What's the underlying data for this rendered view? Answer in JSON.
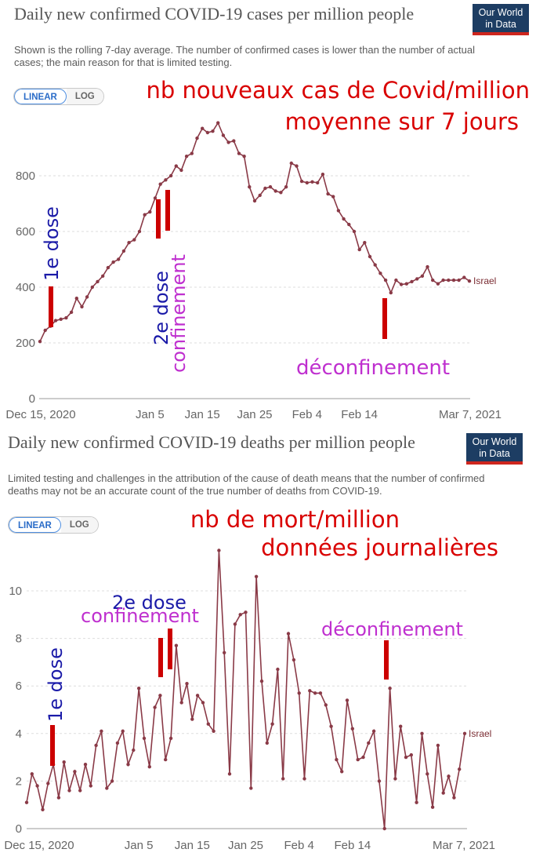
{
  "cases": {
    "title": "Daily new confirmed COVID-19 cases per million people",
    "subtitle": "Shown is the rolling 7-day average. The number of confirmed cases is lower than the number of actual cases; the main reason for that is limited testing.",
    "logo": [
      "Our World",
      "in Data"
    ],
    "scale_options": [
      "LINEAR",
      "LOG"
    ],
    "active_scale": "LINEAR",
    "annotations": {
      "headline": [
        "nb nouveaux cas de Covid/million",
        "moyenne sur 7 jours"
      ],
      "dose1": "1e dose",
      "dose2": "2e dose",
      "confinement": "confinement",
      "deconfinement": "déconfinement"
    },
    "colors": {
      "line": "#8a3a47",
      "annot_red": "#d90000",
      "annot_blue": "#1a1aa8",
      "annot_purple": "#bf2fcf",
      "bar_red": "#cc0000"
    }
  },
  "deaths": {
    "title": "Daily new confirmed COVID-19 deaths per million people",
    "subtitle": "Limited testing and challenges in the attribution of the cause of death means that the number of confirmed deaths may not be an accurate count of the true number of deaths from COVID-19.",
    "logo": [
      "Our World",
      "in Data"
    ],
    "scale_options": [
      "LINEAR",
      "LOG"
    ],
    "active_scale": "LINEAR",
    "annotations": {
      "headline": [
        "nb de mort/million",
        "données journalières"
      ],
      "dose1": "1e dose",
      "dose2": "2e dose",
      "confinement": "confinement",
      "deconfinement": "déconfinement"
    }
  },
  "chart_data": [
    {
      "type": "line",
      "title": "Daily new confirmed COVID-19 cases per million people",
      "x_tick_labels": [
        "Dec 15, 2020",
        "Jan 5",
        "Jan 15",
        "Jan 25",
        "Feb 4",
        "Feb 14",
        "Mar 7, 2021"
      ],
      "x_tick_days": [
        0,
        21,
        31,
        41,
        51,
        61,
        82
      ],
      "y_ticks": [
        0,
        200,
        400,
        600,
        800
      ],
      "ylim": [
        0,
        1000
      ],
      "grid": true,
      "series": [
        {
          "name": "Israel",
          "x_days": [
            0,
            1,
            2,
            3,
            4,
            5,
            6,
            7,
            8,
            9,
            10,
            11,
            12,
            13,
            14,
            15,
            16,
            17,
            18,
            19,
            20,
            21,
            22,
            23,
            24,
            25,
            26,
            27,
            28,
            29,
            30,
            31,
            32,
            33,
            34,
            35,
            36,
            37,
            38,
            39,
            40,
            41,
            42,
            43,
            44,
            45,
            46,
            47,
            48,
            49,
            50,
            51,
            52,
            53,
            54,
            55,
            56,
            57,
            58,
            59,
            60,
            61,
            62,
            63,
            64,
            65,
            66,
            67,
            68,
            69,
            70,
            71,
            72,
            73,
            74,
            75,
            76,
            77,
            78,
            79,
            80,
            81,
            82
          ],
          "values": [
            205,
            245,
            260,
            280,
            285,
            290,
            310,
            360,
            330,
            365,
            400,
            420,
            440,
            470,
            490,
            500,
            530,
            560,
            570,
            600,
            660,
            670,
            720,
            770,
            785,
            800,
            835,
            820,
            870,
            880,
            935,
            970,
            955,
            960,
            990,
            945,
            920,
            925,
            880,
            870,
            760,
            710,
            730,
            755,
            760,
            745,
            740,
            760,
            845,
            835,
            780,
            775,
            778,
            775,
            805,
            735,
            725,
            675,
            645,
            625,
            600,
            535,
            560,
            510,
            480,
            450,
            425,
            380,
            425,
            410,
            412,
            420,
            430,
            440,
            473,
            425,
            412,
            425,
            425,
            425,
            425,
            435,
            422
          ]
        }
      ]
    },
    {
      "type": "line",
      "title": "Daily new confirmed COVID-19 deaths per million people",
      "x_tick_labels": [
        "Dec 15, 2020",
        "Jan 5",
        "Jan 15",
        "Jan 25",
        "Feb 4",
        "Feb 14",
        "Mar 7, 2021"
      ],
      "x_tick_days": [
        0,
        21,
        31,
        41,
        51,
        61,
        82
      ],
      "y_ticks": [
        0,
        2,
        4,
        6,
        8,
        10
      ],
      "ylim": [
        0,
        12
      ],
      "grid": true,
      "series": [
        {
          "name": "Israel",
          "x_days": [
            0,
            1,
            2,
            3,
            4,
            5,
            6,
            7,
            8,
            9,
            10,
            11,
            12,
            13,
            14,
            15,
            16,
            17,
            18,
            19,
            20,
            21,
            22,
            23,
            24,
            25,
            26,
            27,
            28,
            29,
            30,
            31,
            32,
            33,
            34,
            35,
            36,
            37,
            38,
            39,
            40,
            41,
            42,
            43,
            44,
            45,
            46,
            47,
            48,
            49,
            50,
            51,
            52,
            53,
            54,
            55,
            56,
            57,
            58,
            59,
            60,
            61,
            62,
            63,
            64,
            65,
            66,
            67,
            68,
            69,
            70,
            71,
            72,
            73,
            74,
            75,
            76,
            77,
            78,
            79,
            80,
            81,
            82
          ],
          "values": [
            1.1,
            2.3,
            1.8,
            0.8,
            1.9,
            2.7,
            1.3,
            2.8,
            1.6,
            2.4,
            1.6,
            2.7,
            1.8,
            3.5,
            4.1,
            1.7,
            2.0,
            3.6,
            4.1,
            2.7,
            3.3,
            5.9,
            3.8,
            2.6,
            5.1,
            5.6,
            2.9,
            3.8,
            7.7,
            5.3,
            6.1,
            4.6,
            5.6,
            5.3,
            4.4,
            4.1,
            11.7,
            7.4,
            2.3,
            8.6,
            9.0,
            9.1,
            1.7,
            10.6,
            6.2,
            3.6,
            4.4,
            6.7,
            2.1,
            8.2,
            7.1,
            5.7,
            2.1,
            5.8,
            5.7,
            5.7,
            5.2,
            4.3,
            2.9,
            2.4,
            5.4,
            4.2,
            2.9,
            3.0,
            3.6,
            4.1,
            2.0,
            0.0,
            5.9,
            2.1,
            4.3,
            3.0,
            3.1,
            1.1,
            4.0,
            2.3,
            0.9,
            3.5,
            1.5,
            2.2,
            1.3,
            2.5,
            4.0
          ]
        }
      ]
    }
  ]
}
